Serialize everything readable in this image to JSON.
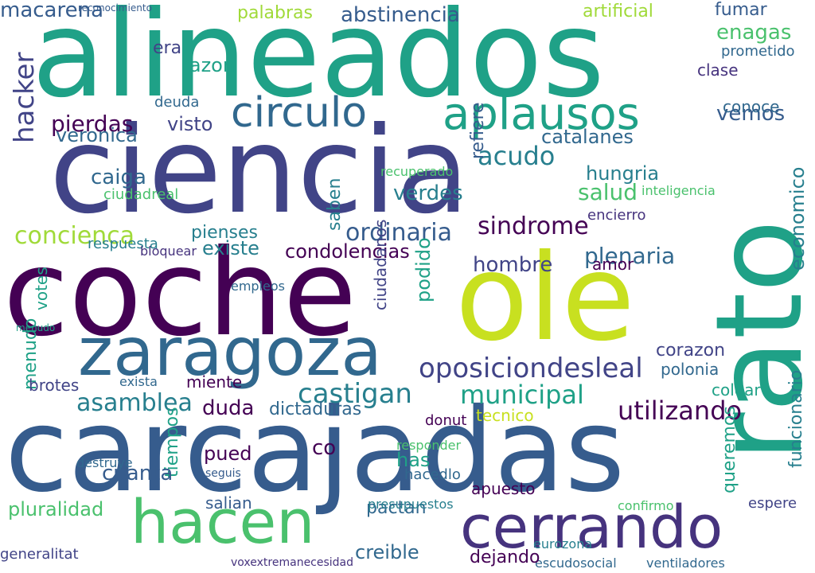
{
  "palette": {
    "dark_purple": "#46337e",
    "indigo": "#414487",
    "blue": "#365c8d",
    "slate": "#31688e",
    "teal_blue": "#277f8e",
    "teal": "#1fa187",
    "green": "#4ac16d",
    "light_green": "#5ec962",
    "lime": "#a0da39",
    "yellow_green": "#c8e020",
    "deep_purple": "#440154"
  },
  "words": [
    {
      "text": "alineados",
      "color": "#1fa187",
      "weight": 1.0,
      "vertical": false
    },
    {
      "text": "ciencia",
      "color": "#414487",
      "weight": 0.98,
      "vertical": false
    },
    {
      "text": "coche",
      "color": "#440154",
      "weight": 0.97,
      "vertical": false
    },
    {
      "text": "carcajadas",
      "color": "#365c8d",
      "weight": 0.96,
      "vertical": false
    },
    {
      "text": "rato",
      "color": "#1fa187",
      "weight": 0.9,
      "vertical": true
    },
    {
      "text": "ole",
      "color": "#c8e020",
      "weight": 0.9,
      "vertical": false
    },
    {
      "text": "zaragoza",
      "color": "#31688e",
      "weight": 0.7,
      "vertical": false
    },
    {
      "text": "hacen",
      "color": "#4ac16d",
      "weight": 0.65,
      "vertical": false
    },
    {
      "text": "cerrando",
      "color": "#46337e",
      "weight": 0.6,
      "vertical": false
    },
    {
      "text": "circulo",
      "color": "#31688e",
      "weight": 0.45,
      "vertical": false
    },
    {
      "text": "aplausos",
      "color": "#1fa187",
      "weight": 0.45,
      "vertical": false
    },
    {
      "text": "oposiciondesleal",
      "color": "#414487",
      "weight": 0.35,
      "vertical": false
    },
    {
      "text": "castigan",
      "color": "#277f8e",
      "weight": 0.35,
      "vertical": false
    },
    {
      "text": "municipal",
      "color": "#1fa187",
      "weight": 0.33,
      "vertical": false
    },
    {
      "text": "asamblea",
      "color": "#277f8e",
      "weight": 0.33,
      "vertical": false
    },
    {
      "text": "utilizando",
      "color": "#440154",
      "weight": 0.32,
      "vertical": false
    },
    {
      "text": "concienca",
      "color": "#a0da39",
      "weight": 0.3,
      "vertical": false
    },
    {
      "text": "hacker",
      "color": "#414487",
      "weight": 0.3,
      "vertical": true
    },
    {
      "text": "pierdas",
      "color": "#440154",
      "weight": 0.28,
      "vertical": false
    },
    {
      "text": "ordinaria",
      "color": "#365c8d",
      "weight": 0.3,
      "vertical": false
    },
    {
      "text": "sindrome",
      "color": "#440154",
      "weight": 0.3,
      "vertical": false
    },
    {
      "text": "plenaria",
      "color": "#31688e",
      "weight": 0.28,
      "vertical": false
    },
    {
      "text": "acudo",
      "color": "#277f8e",
      "weight": 0.28,
      "vertical": false
    },
    {
      "text": "salud",
      "color": "#4ac16d",
      "weight": 0.26,
      "vertical": false
    },
    {
      "text": "veronica",
      "color": "#31688e",
      "weight": 0.2,
      "vertical": false
    },
    {
      "text": "caiga",
      "color": "#31688e",
      "weight": 0.2,
      "vertical": false
    },
    {
      "text": "verdes",
      "color": "#277f8e",
      "weight": 0.22,
      "vertical": false
    },
    {
      "text": "hungria",
      "color": "#277f8e",
      "weight": 0.22,
      "vertical": false
    },
    {
      "text": "catalanes",
      "color": "#31688e",
      "weight": 0.2,
      "vertical": false
    },
    {
      "text": "pienses",
      "color": "#277f8e",
      "weight": 0.2,
      "vertical": false
    },
    {
      "text": "existe",
      "color": "#277f8e",
      "weight": 0.2,
      "vertical": false
    },
    {
      "text": "condolencias",
      "color": "#440154",
      "weight": 0.22,
      "vertical": false
    },
    {
      "text": "hombre",
      "color": "#414487",
      "weight": 0.22,
      "vertical": false
    },
    {
      "text": "podido",
      "color": "#1fa187",
      "weight": 0.22,
      "vertical": true
    },
    {
      "text": "ciudadanos",
      "color": "#414487",
      "weight": 0.18,
      "vertical": true
    },
    {
      "text": "saben",
      "color": "#277f8e",
      "weight": 0.2,
      "vertical": true
    },
    {
      "text": "refiere",
      "color": "#365c8d",
      "weight": 0.2,
      "vertical": true
    },
    {
      "text": "abstinencia",
      "color": "#365c8d",
      "weight": 0.22,
      "vertical": false
    },
    {
      "text": "palabras",
      "color": "#a0da39",
      "weight": 0.18,
      "vertical": false
    },
    {
      "text": "macarena",
      "color": "#365c8d",
      "weight": 0.2,
      "vertical": false
    },
    {
      "text": "enagas",
      "color": "#4ac16d",
      "weight": 0.2,
      "vertical": false
    },
    {
      "text": "vemos",
      "color": "#365c8d",
      "weight": 0.22,
      "vertical": false
    },
    {
      "text": "conoce",
      "color": "#31688e",
      "weight": 0.18,
      "vertical": false
    },
    {
      "text": "economico",
      "color": "#277f8e",
      "weight": 0.22,
      "vertical": true
    },
    {
      "text": "funcionario",
      "color": "#277f8e",
      "weight": 0.22,
      "vertical": true
    },
    {
      "text": "menudo",
      "color": "#1fa187",
      "weight": 0.2,
      "vertical": true
    },
    {
      "text": "votes",
      "color": "#1fa187",
      "weight": 0.18,
      "vertical": true
    },
    {
      "text": "tiempos",
      "color": "#1fa187",
      "weight": 0.2,
      "vertical": true
    },
    {
      "text": "queremos",
      "color": "#1fa187",
      "weight": 0.2,
      "vertical": true
    },
    {
      "text": "dictaduras",
      "color": "#31688e",
      "weight": 0.2,
      "vertical": false
    },
    {
      "text": "duda",
      "color": "#440154",
      "weight": 0.22,
      "vertical": false
    },
    {
      "text": "miente",
      "color": "#440154",
      "weight": 0.16,
      "vertical": false
    },
    {
      "text": "brotes",
      "color": "#414487",
      "weight": 0.16,
      "vertical": false
    },
    {
      "text": "corazon",
      "color": "#414487",
      "weight": 0.18,
      "vertical": false
    },
    {
      "text": "polonia",
      "color": "#31688e",
      "weight": 0.16,
      "vertical": false
    },
    {
      "text": "colear",
      "color": "#1fa187",
      "weight": 0.16,
      "vertical": false
    },
    {
      "text": "pluralidad",
      "color": "#4ac16d",
      "weight": 0.2,
      "vertical": false
    },
    {
      "text": "cuanta",
      "color": "#365c8d",
      "weight": 0.2,
      "vertical": false
    },
    {
      "text": "generalitat",
      "color": "#414487",
      "weight": 0.14,
      "vertical": false
    },
    {
      "text": "pactan",
      "color": "#31688e",
      "weight": 0.16,
      "vertical": false
    },
    {
      "text": "creible",
      "color": "#31688e",
      "weight": 0.18,
      "vertical": false
    },
    {
      "text": "presupuestos",
      "color": "#277f8e",
      "weight": 0.14,
      "vertical": false
    },
    {
      "text": "pued",
      "color": "#440154",
      "weight": 0.16,
      "vertical": false
    },
    {
      "text": "salian",
      "color": "#365c8d",
      "weight": 0.16,
      "vertical": false
    },
    {
      "text": "co",
      "color": "#440154",
      "weight": 0.18,
      "vertical": false
    },
    {
      "text": "has",
      "color": "#1fa187",
      "weight": 0.18,
      "vertical": false
    },
    {
      "text": "donut",
      "color": "#440154",
      "weight": 0.12,
      "vertical": false
    },
    {
      "text": "tecnico",
      "color": "#c8e020",
      "weight": 0.16,
      "vertical": false
    },
    {
      "text": "artificial",
      "color": "#a0da39",
      "weight": 0.16,
      "vertical": false
    },
    {
      "text": "fumar",
      "color": "#365c8d",
      "weight": 0.16,
      "vertical": false
    },
    {
      "text": "prometido",
      "color": "#31688e",
      "weight": 0.14,
      "vertical": false
    },
    {
      "text": "clase",
      "color": "#46337e",
      "weight": 0.16,
      "vertical": false
    },
    {
      "text": "deuda",
      "color": "#31688e",
      "weight": 0.14,
      "vertical": false
    },
    {
      "text": "visto",
      "color": "#414487",
      "weight": 0.18,
      "vertical": false
    },
    {
      "text": "razon",
      "color": "#1fa187",
      "weight": 0.16,
      "vertical": false
    },
    {
      "text": "era",
      "color": "#414487",
      "weight": 0.16,
      "vertical": false
    },
    {
      "text": "respuesta",
      "color": "#277f8e",
      "weight": 0.14,
      "vertical": false
    },
    {
      "text": "bloquear",
      "color": "#46337e",
      "weight": 0.12,
      "vertical": false
    },
    {
      "text": "ciudadreal",
      "color": "#4ac16d",
      "weight": 0.14,
      "vertical": false
    },
    {
      "text": "recuperado",
      "color": "#4ac16d",
      "weight": 0.12,
      "vertical": false
    },
    {
      "text": "empleos",
      "color": "#31688e",
      "weight": 0.12,
      "vertical": false
    },
    {
      "text": "escudosocial",
      "color": "#31688e",
      "weight": 0.12,
      "vertical": false
    },
    {
      "text": "voxextremanecesidad",
      "color": "#46337e",
      "weight": 0.1,
      "vertical": false
    },
    {
      "text": "apuesto",
      "color": "#440154",
      "weight": 0.14,
      "vertical": false
    },
    {
      "text": "dejando",
      "color": "#440154",
      "weight": 0.12,
      "vertical": false
    },
    {
      "text": "eurozona",
      "color": "#277f8e",
      "weight": 0.12,
      "vertical": false
    },
    {
      "text": "ventiladores",
      "color": "#31688e",
      "weight": 0.1,
      "vertical": false
    },
    {
      "text": "amor",
      "color": "#440154",
      "weight": 0.14,
      "vertical": false
    },
    {
      "text": "encierro",
      "color": "#46337e",
      "weight": 0.12,
      "vertical": false
    },
    {
      "text": "inteligencia",
      "color": "#4ac16d",
      "weight": 0.12,
      "vertical": false
    },
    {
      "text": "seguis",
      "color": "#365c8d",
      "weight": 0.1,
      "vertical": false
    },
    {
      "text": "hacedlo",
      "color": "#31688e",
      "weight": 0.12,
      "vertical": false
    },
    {
      "text": "responder",
      "color": "#4ac16d",
      "weight": 0.1,
      "vertical": false
    },
    {
      "text": "destruye",
      "color": "#31688e",
      "weight": 0.1,
      "vertical": false
    },
    {
      "text": "confirmo",
      "color": "#4ac16d",
      "weight": 0.1,
      "vertical": false
    },
    {
      "text": "exista",
      "color": "#31688e",
      "weight": 0.12,
      "vertical": false
    },
    {
      "text": "espere",
      "color": "#414487",
      "weight": 0.1,
      "vertical": false
    },
    {
      "text": "menudo",
      "color": "#1fa187",
      "weight": 0.08,
      "vertical": false
    },
    {
      "text": "reconocimiento",
      "color": "#365c8d",
      "weight": 0.08,
      "vertical": false
    }
  ]
}
